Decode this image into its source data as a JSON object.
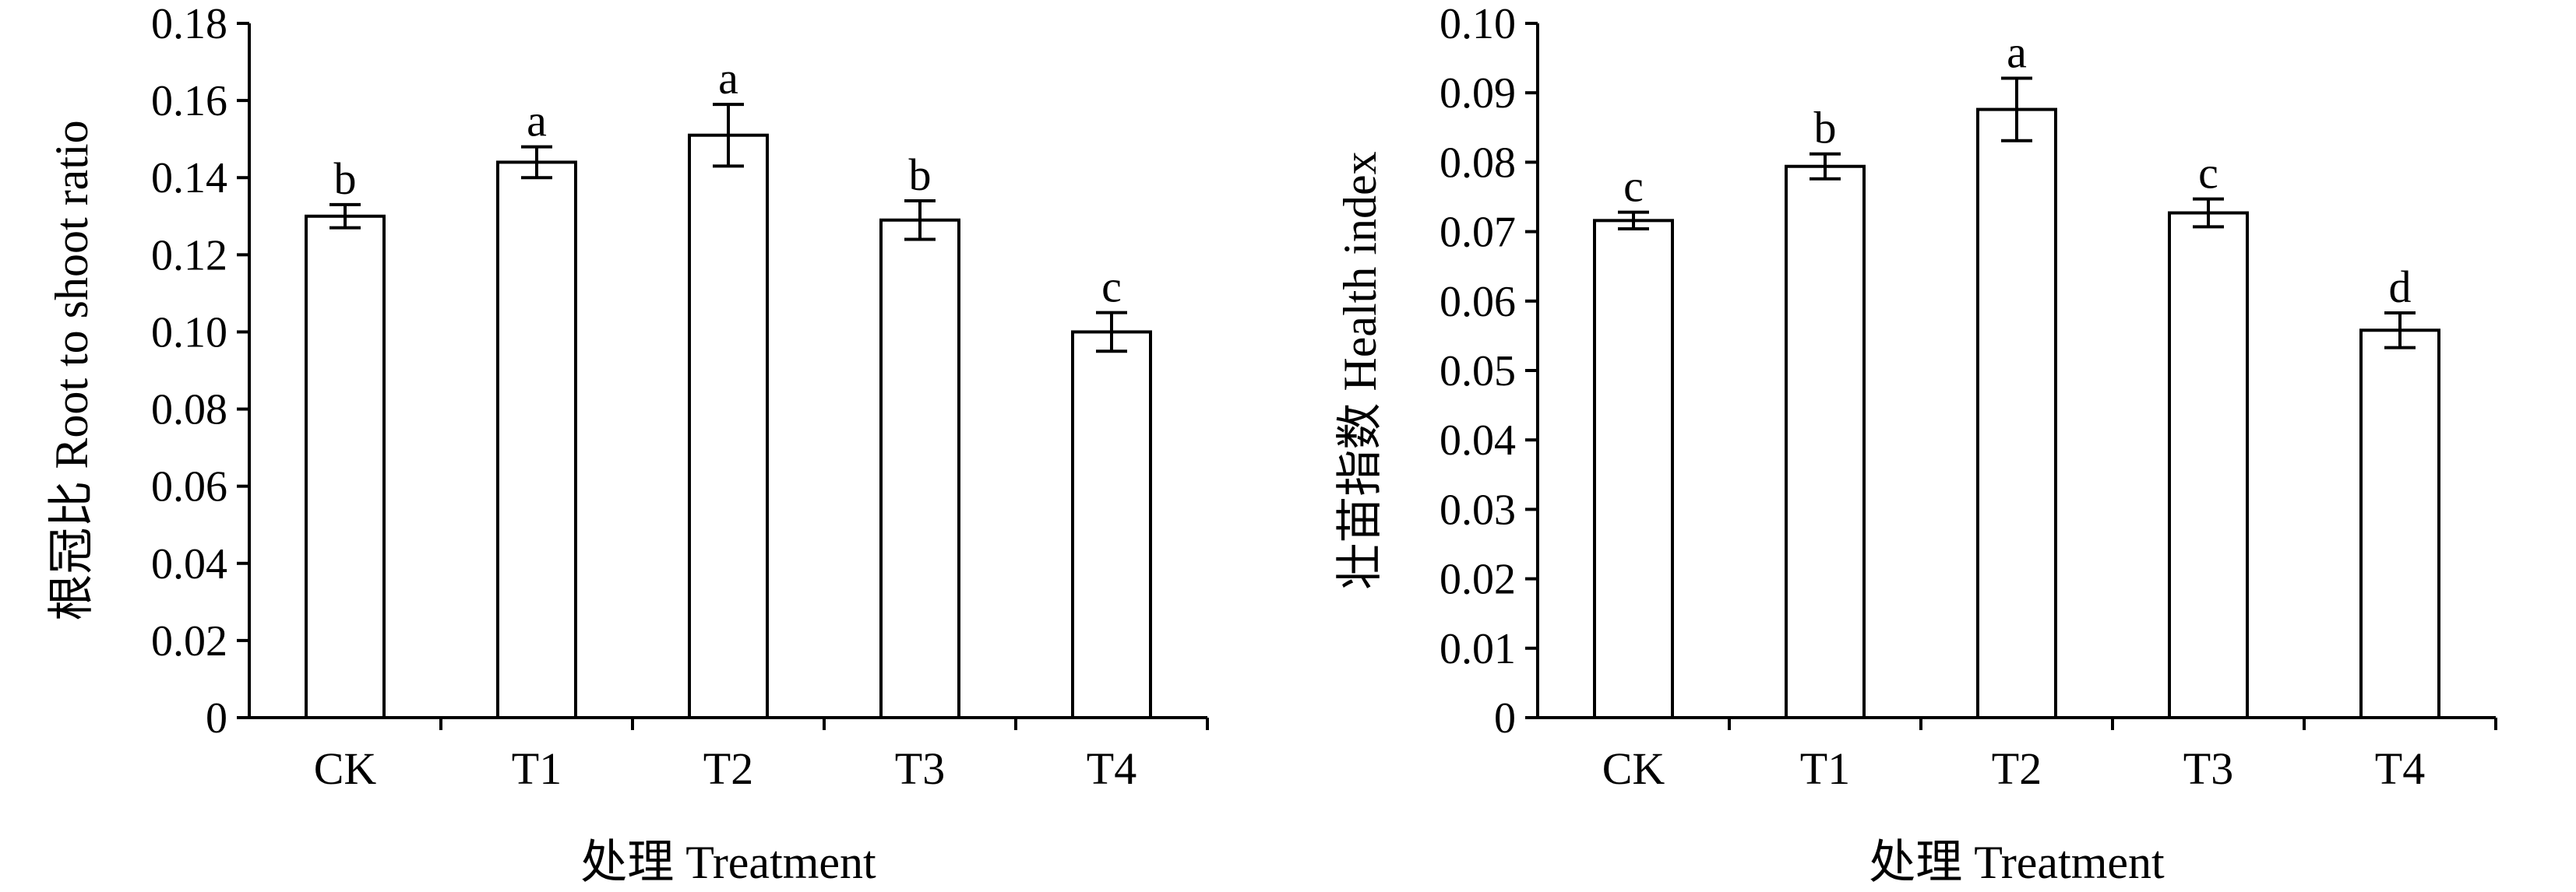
{
  "chart_data": [
    {
      "type": "bar",
      "categories": [
        "CK",
        "T1",
        "T2",
        "T3",
        "T4"
      ],
      "values": [
        0.13,
        0.144,
        0.151,
        0.129,
        0.1
      ],
      "errors": [
        0.003,
        0.004,
        0.008,
        0.005,
        0.005
      ],
      "significance": [
        "b",
        "a",
        "a",
        "b",
        "c"
      ],
      "xlabel": "处理 Treatment",
      "ylabel": "根冠比 Root to shoot ratio",
      "ylim": [
        0,
        0.18
      ],
      "yticks": [
        "0",
        "0.02",
        "0.04",
        "0.06",
        "0.08",
        "0.10",
        "0.12",
        "0.14",
        "0.16",
        "0.18"
      ],
      "grid": false,
      "bar_fill": "#ffffff",
      "bar_stroke": "#000000"
    },
    {
      "type": "bar",
      "categories": [
        "CK",
        "T1",
        "T2",
        "T3",
        "T4"
      ],
      "values": [
        0.0716,
        0.0794,
        0.0876,
        0.0727,
        0.0558
      ],
      "errors": [
        0.0012,
        0.0018,
        0.0045,
        0.002,
        0.0025
      ],
      "significance": [
        "c",
        "b",
        "a",
        "c",
        "d"
      ],
      "xlabel": "处理 Treatment",
      "ylabel": "壮苗指数 Health index",
      "ylim": [
        0,
        0.1
      ],
      "yticks": [
        "0",
        "0.01",
        "0.02",
        "0.03",
        "0.04",
        "0.05",
        "0.06",
        "0.07",
        "0.08",
        "0.09",
        "0.10"
      ],
      "grid": false,
      "bar_fill": "#ffffff",
      "bar_stroke": "#000000"
    }
  ]
}
